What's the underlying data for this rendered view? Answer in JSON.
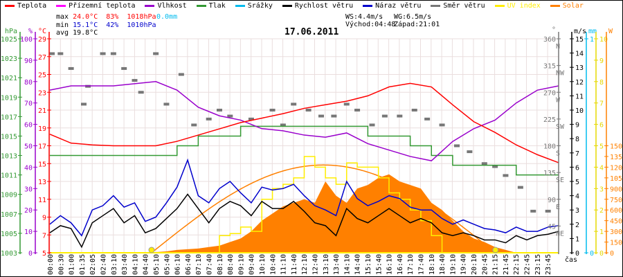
{
  "legend": [
    {
      "label": "Teplota",
      "color": "#ff0000"
    },
    {
      "label": "Přízemní teplota",
      "color": "#ff00ff"
    },
    {
      "label": "Vlhkost",
      "color": "#9900cc"
    },
    {
      "label": "Tlak",
      "color": "#339933"
    },
    {
      "label": "Srážky",
      "color": "#00bbee"
    },
    {
      "label": "Rychlost větru",
      "color": "#000000"
    },
    {
      "label": "Náraz větru",
      "color": "#0000cc"
    },
    {
      "label": "Směr větru",
      "color": "#777777"
    },
    {
      "label": "UV index",
      "color": "#ffee00"
    },
    {
      "label": "Solar",
      "color": "#ff8000"
    }
  ],
  "stats": {
    "max_label": "max",
    "max_temp": "24.0°C",
    "max_hum": "83%",
    "max_press": "1018hPa",
    "rain": "0.0mm",
    "min_label": "min",
    "min_temp": "15.1°C",
    "min_hum": "42%",
    "min_press": "1010hPa",
    "avg_label": "avg",
    "avg_temp": "19.8°C",
    "ws": "WS:4.4m/s",
    "wg": "WG:6.5m/s",
    "sunrise": "Východ:04:48",
    "sunset": "Západ:21:01"
  },
  "chart_data": {
    "type": "line",
    "title": "17.06.2011",
    "xlabel": "čas",
    "x_ticks": [
      "00:00",
      "00:30",
      "01:00",
      "01:35",
      "02:05",
      "02:40",
      "03:10",
      "03:40",
      "04:10",
      "04:40",
      "05:10",
      "05:40",
      "06:10",
      "06:40",
      "07:10",
      "07:40",
      "08:10",
      "08:40",
      "09:10",
      "09:40",
      "10:10",
      "10:40",
      "11:10",
      "11:40",
      "12:10",
      "12:40",
      "13:10",
      "13:40",
      "14:10",
      "14:40",
      "15:10",
      "15:40",
      "16:10",
      "16:40",
      "17:10",
      "17:40",
      "18:10",
      "18:40",
      "19:10",
      "19:40",
      "20:10",
      "20:45",
      "21:15",
      "21:45",
      "22:15",
      "22:45",
      "23:15",
      "23:45"
    ],
    "axes": {
      "pressure": {
        "unit": "hPa",
        "range": [
          1003,
          1025
        ],
        "ticks": [
          "1003",
          "1005",
          "1007",
          "1009",
          "1011",
          "1013",
          "1015",
          "1017",
          "1019",
          "1021",
          "1023",
          "1025"
        ]
      },
      "humidity": {
        "unit": "%",
        "range": [
          0,
          100
        ],
        "ticks": [
          "0",
          "10",
          "20",
          "30",
          "40",
          "50",
          "60",
          "70",
          "80",
          "90",
          "100"
        ]
      },
      "temperature": {
        "unit": "°C",
        "range": [
          5,
          29
        ],
        "ticks": [
          "5",
          "7",
          "9",
          "11",
          "13",
          "15",
          "17",
          "19",
          "21",
          "23",
          "25",
          "27",
          "29"
        ]
      },
      "direction": {
        "unit": "°",
        "range": [
          0,
          360
        ],
        "ticks": [
          {
            "v": "45",
            "d": "NE"
          },
          {
            "v": "90",
            "d": "E"
          },
          {
            "v": "135",
            "d": "SE"
          },
          {
            "v": "180",
            "d": "S"
          },
          {
            "v": "225",
            "d": "SW"
          },
          {
            "v": "270",
            "d": "W"
          },
          {
            "v": "315",
            "d": "NW"
          },
          {
            "v": "360",
            "d": "N"
          }
        ]
      },
      "wind": {
        "unit": "m/s",
        "range": [
          0,
          15
        ],
        "ticks": [
          "0",
          "1",
          "2",
          "3",
          "4",
          "5",
          "6",
          "7",
          "8",
          "9",
          "10",
          "11",
          "12",
          "13",
          "14",
          "15"
        ]
      },
      "rain": {
        "unit": "mm",
        "range": [
          0,
          1
        ],
        "ticks": [
          "0",
          "1"
        ]
      },
      "uv": {
        "range": [
          0,
          10
        ],
        "ticks": [
          "0",
          "1",
          "2",
          "3",
          "4",
          "5",
          "6",
          "7",
          "8",
          "9",
          "10"
        ]
      },
      "solar": {
        "unit": "W",
        "range": [
          0,
          3000
        ],
        "ticks": [
          "0",
          "150",
          "300",
          "450",
          "600",
          "750",
          "900",
          "1050",
          "1200",
          "1350",
          "1500"
        ]
      }
    },
    "hourly_step": 1,
    "temperature": [
      18.3,
      17.3,
      17.1,
      17.0,
      17.0,
      17.0,
      17.5,
      18.2,
      18.9,
      19.6,
      20.1,
      20.6,
      21.2,
      21.6,
      22.0,
      22.6,
      23.6,
      24.0,
      23.6,
      21.6,
      19.7,
      18.5,
      17.1,
      16.0,
      15.1
    ],
    "humidity": [
      76,
      78,
      78,
      78,
      79,
      80,
      76,
      68,
      64,
      62,
      58,
      57,
      55,
      54,
      56,
      51,
      48,
      45,
      43,
      52,
      58,
      62,
      70,
      76,
      78
    ],
    "pressure": [
      1013,
      1013,
      1013,
      1013,
      1013,
      1013,
      1014,
      1015,
      1015,
      1016,
      1016,
      1016,
      1016,
      1016,
      1016,
      1015,
      1015,
      1014,
      1013,
      1012,
      1012,
      1012,
      1011,
      1011,
      1011
    ],
    "halfhour_step": 0.5,
    "wind_speed": [
      1.4,
      1.9,
      1.7,
      0.4,
      2.1,
      2.6,
      3.1,
      2.1,
      2.6,
      1.4,
      1.7,
      2.4,
      3.1,
      4.1,
      3.1,
      2.1,
      3.1,
      3.6,
      3.3,
      2.6,
      3.6,
      3.1,
      3.1,
      3.6,
      2.9,
      2.1,
      1.9,
      1.2,
      3.1,
      2.4,
      2.1,
      2.6,
      3.1,
      2.6,
      2.1,
      2.4,
      2.1,
      1.4,
      1.2,
      1.4,
      1.2,
      0.9,
      0.9,
      0.7,
      1.2,
      0.9,
      1.2,
      1.3,
      1.5
    ],
    "wind_gust": [
      2.0,
      2.6,
      2.1,
      1.2,
      3.0,
      3.3,
      4.0,
      3.2,
      3.5,
      2.2,
      2.5,
      3.5,
      4.6,
      6.5,
      4.0,
      3.5,
      4.5,
      5.0,
      4.2,
      3.5,
      4.6,
      4.4,
      4.5,
      4.8,
      4.0,
      3.3,
      3.0,
      2.6,
      5.0,
      3.8,
      3.3,
      3.6,
      4.0,
      3.8,
      3.2,
      3.0,
      3.0,
      2.4,
      2.0,
      2.3,
      2.0,
      1.7,
      1.6,
      1.4,
      1.8,
      1.5,
      1.5,
      1.8,
      1.9
    ],
    "solar": [
      0,
      0,
      0,
      0,
      0,
      0,
      0,
      0,
      0,
      0,
      10,
      20,
      40,
      50,
      60,
      80,
      100,
      150,
      200,
      300,
      450,
      550,
      650,
      700,
      750,
      700,
      1000,
      800,
      700,
      900,
      950,
      1050,
      1100,
      1000,
      950,
      900,
      700,
      600,
      450,
      300,
      200,
      150,
      80,
      40,
      0,
      0,
      0,
      0,
      0
    ],
    "uv": [
      0,
      0,
      0,
      0,
      0,
      0,
      0,
      0,
      0,
      0,
      0,
      0,
      0,
      0,
      0,
      0,
      0.8,
      0.9,
      1.2,
      1.0,
      2.5,
      3.0,
      3.2,
      3.5,
      4.5,
      4.0,
      3.5,
      3.2,
      4.2,
      4.0,
      4.0,
      3.5,
      2.8,
      2.5,
      2.0,
      1.5,
      0.8,
      0,
      0,
      0,
      0,
      0,
      0,
      0,
      0,
      0,
      0,
      0,
      0
    ],
    "clear_sky_peak": 1230,
    "sunrise_h": 4.8,
    "sunset_h": 21.02,
    "wind_direction": [
      [
        0.1,
        335
      ],
      [
        0.5,
        335
      ],
      [
        1.0,
        310
      ],
      [
        1.6,
        250
      ],
      [
        1.8,
        280
      ],
      [
        2.5,
        335
      ],
      [
        3.0,
        335
      ],
      [
        3.5,
        310
      ],
      [
        4.0,
        290
      ],
      [
        4.3,
        270
      ],
      [
        5.0,
        335
      ],
      [
        5.5,
        250
      ],
      [
        6.2,
        300
      ],
      [
        6.8,
        215
      ],
      [
        7.5,
        225
      ],
      [
        8.0,
        240
      ],
      [
        8.5,
        230
      ],
      [
        9.5,
        225
      ],
      [
        10.5,
        240
      ],
      [
        11.0,
        215
      ],
      [
        11.5,
        250
      ],
      [
        12.2,
        240
      ],
      [
        12.8,
        230
      ],
      [
        13.4,
        230
      ],
      [
        14.0,
        250
      ],
      [
        14.5,
        240
      ],
      [
        15.2,
        215
      ],
      [
        15.8,
        230
      ],
      [
        16.5,
        230
      ],
      [
        17.2,
        240
      ],
      [
        17.8,
        225
      ],
      [
        18.5,
        215
      ],
      [
        19.2,
        180
      ],
      [
        19.8,
        170
      ],
      [
        20.5,
        150
      ],
      [
        21.0,
        145
      ],
      [
        21.5,
        130
      ],
      [
        22.2,
        110
      ],
      [
        22.8,
        70
      ],
      [
        23.5,
        70
      ]
    ]
  }
}
